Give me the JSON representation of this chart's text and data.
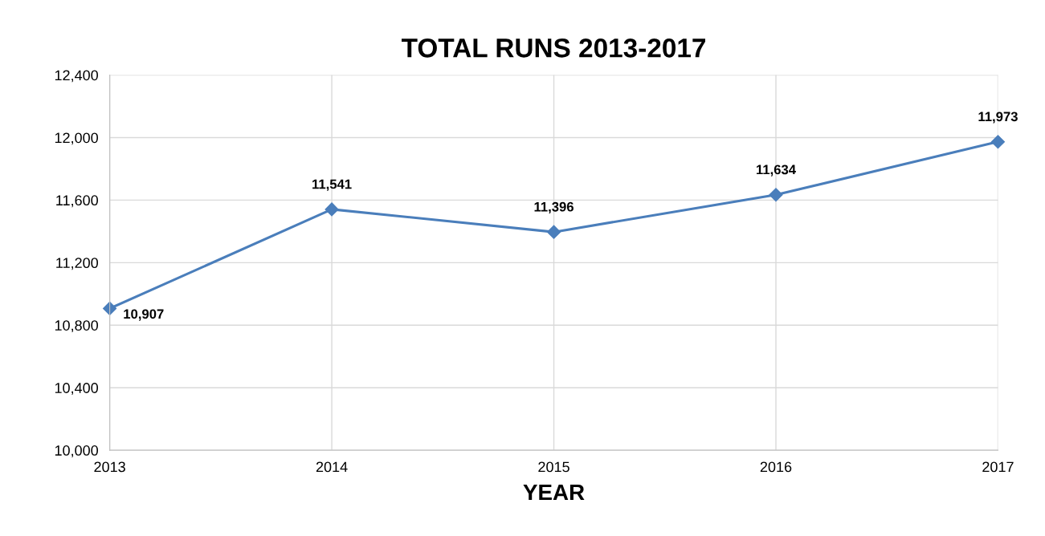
{
  "chart_data": {
    "type": "line",
    "title": "TOTAL RUNS 2013-2017",
    "xlabel": "YEAR",
    "x": [
      2013,
      2014,
      2015,
      2016,
      2017
    ],
    "series": [
      {
        "color": "#4a7ebb",
        "values": [
          10907,
          11541,
          11396,
          11634,
          11973
        ],
        "value_labels": [
          "10,907",
          "11,541",
          "11,396",
          "11,634",
          "11,973"
        ]
      }
    ],
    "xlim": [
      2013,
      2017
    ],
    "xticks": [
      2013,
      2014,
      2015,
      2016,
      2017
    ],
    "ylim": [
      10000,
      12400
    ],
    "yticks": [
      {
        "value": 10000,
        "label": "10,000"
      },
      {
        "value": 10400,
        "label": "10,400"
      },
      {
        "value": 10800,
        "label": "10,800"
      },
      {
        "value": 11200,
        "label": "11,200"
      },
      {
        "value": 11600,
        "label": "11,600"
      },
      {
        "value": 12000,
        "label": "12,000"
      },
      {
        "value": 12400,
        "label": "12,400"
      }
    ],
    "grid": true,
    "marker": "diamond",
    "line_style": "solid"
  }
}
